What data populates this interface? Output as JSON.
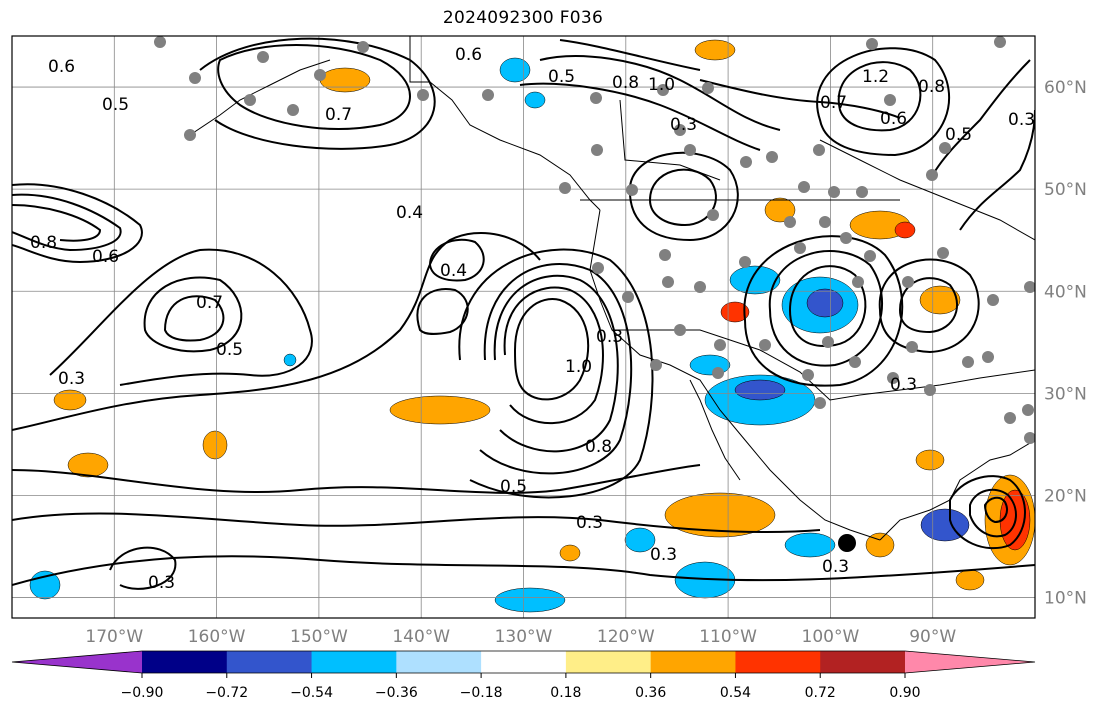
{
  "title": "2024092300 F036",
  "axes": {
    "lon_labels": [
      "170°W",
      "160°W",
      "150°W",
      "140°W",
      "130°W",
      "120°W",
      "110°W",
      "100°W",
      "90°W"
    ],
    "lon_values": [
      -170,
      -160,
      -150,
      -140,
      -130,
      -120,
      -110,
      -100,
      -90
    ],
    "lat_labels": [
      "10°N",
      "20°N",
      "30°N",
      "40°N",
      "50°N",
      "60°N"
    ],
    "lat_values": [
      10,
      20,
      30,
      40,
      50,
      60
    ],
    "lon_range": [
      -180,
      -80
    ],
    "lat_range": [
      8,
      65
    ]
  },
  "colorbar": {
    "tick_labels": [
      "−0.90",
      "−0.72",
      "−0.54",
      "−0.36",
      "−0.18",
      "0.18",
      "0.36",
      "0.54",
      "0.72",
      "0.90"
    ],
    "levels": [
      -0.9,
      -0.72,
      -0.54,
      -0.36,
      -0.18,
      0.18,
      0.36,
      0.54,
      0.72,
      0.9
    ],
    "colors": [
      "#9933cc",
      "#000088",
      "#3355cc",
      "#00bfff",
      "#aee0ff",
      "#ffffff",
      "#ffee88",
      "#ffa500",
      "#ff3300",
      "#b22222",
      "#ff88aa"
    ],
    "extend": "both"
  },
  "contour_labels": [
    "0.6",
    "0.5",
    "0.7",
    "0.8",
    "0.6",
    "0.7",
    "0.5",
    "0.3",
    "0.4",
    "0.4",
    "0.3",
    "1.0",
    "0.8",
    "0.5",
    "0.3",
    "0.3",
    "0.3",
    "0.3",
    "0.6",
    "0.7",
    "1.2",
    "0.8",
    "0.6",
    "0.5",
    "0.3",
    "0.3",
    "0.5",
    "1.0",
    "0.8",
    "0.3"
  ],
  "markers": {
    "storm_center": "black-dot",
    "stations": "grey-dots"
  }
}
